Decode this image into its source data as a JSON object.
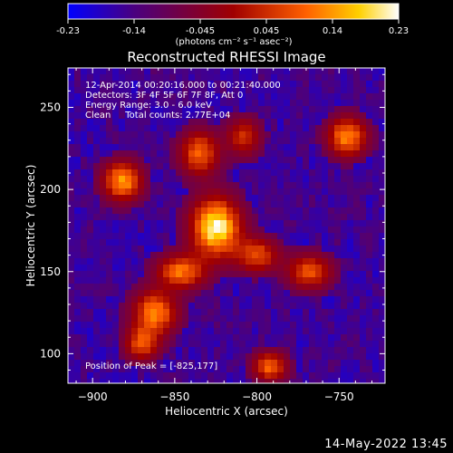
{
  "chart_data": {
    "type": "heatmap",
    "title": "Reconstructed RHESSI Image",
    "xlabel": "Heliocentric X (arcsec)",
    "ylabel": "Heliocentric Y (arcsec)",
    "xlim": [
      -915,
      -722
    ],
    "ylim": [
      82,
      274
    ],
    "xticks": [
      -900,
      -850,
      -800,
      -750
    ],
    "yticks": [
      100,
      150,
      200,
      250
    ],
    "colorbar": {
      "range": [
        -0.23,
        0.23
      ],
      "ticks": [
        "-0.23",
        "-0.14",
        "-0.045",
        "0.045",
        "0.14",
        "0.23"
      ],
      "unit_label": "(photons cm⁻² s⁻¹ asec⁻²)",
      "colors": [
        "#0000ff",
        "#4a0080",
        "#a00000",
        "#ff6000",
        "#ffd000",
        "#ffffff"
      ]
    },
    "annotations": [
      "12-Apr-2014 00:20:16.000 to 00:21:40.000",
      "Detectors: 3F 4F 5F 6F 7F 8F, Att 0",
      "Energy Range: 3.0 - 6.0 keV",
      "Clean     Total counts: 2.77E+04"
    ],
    "peak_label": "Position of Peak = [-825,177]",
    "peak": [
      -825,
      177
    ],
    "sources": [
      {
        "x": -825,
        "y": 177,
        "amp": 1.0,
        "sx": 10,
        "sy": 12
      },
      {
        "x": -835,
        "y": 222,
        "amp": 0.62,
        "sx": 8,
        "sy": 9
      },
      {
        "x": -808,
        "y": 232,
        "amp": 0.45,
        "sx": 7,
        "sy": 8
      },
      {
        "x": -882,
        "y": 205,
        "amp": 0.75,
        "sx": 8,
        "sy": 8
      },
      {
        "x": -745,
        "y": 232,
        "amp": 0.72,
        "sx": 8,
        "sy": 8
      },
      {
        "x": -846,
        "y": 150,
        "amp": 0.65,
        "sx": 10,
        "sy": 7
      },
      {
        "x": -800,
        "y": 160,
        "amp": 0.55,
        "sx": 9,
        "sy": 7
      },
      {
        "x": -768,
        "y": 150,
        "amp": 0.58,
        "sx": 9,
        "sy": 7
      },
      {
        "x": -862,
        "y": 125,
        "amp": 0.7,
        "sx": 9,
        "sy": 9
      },
      {
        "x": -870,
        "y": 106,
        "amp": 0.55,
        "sx": 7,
        "sy": 7
      },
      {
        "x": -792,
        "y": 92,
        "amp": 0.62,
        "sx": 7,
        "sy": 6
      }
    ]
  },
  "footer": {
    "timestamp": "14-May-2022 13:45"
  }
}
